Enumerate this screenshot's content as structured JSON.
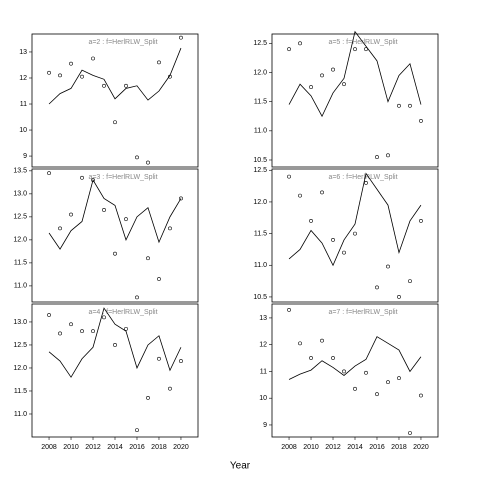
{
  "xlabel": "Year",
  "chart_data": [
    {
      "type": "line",
      "title": "a=2 : f=HerlRLW_Split",
      "x": [
        2008,
        2009,
        2010,
        2011,
        2012,
        2013,
        2014,
        2015,
        2016,
        2017,
        2018,
        2019,
        2020
      ],
      "series": [
        {
          "style": "line",
          "color": "#000000",
          "values": [
            11.0,
            11.4,
            11.6,
            12.3,
            12.1,
            11.95,
            11.2,
            11.6,
            11.7,
            11.15,
            11.5,
            12.1,
            13.15
          ]
        },
        {
          "style": "points",
          "color": "#000000",
          "values": [
            12.2,
            12.1,
            12.55,
            12.05,
            12.75,
            11.7,
            10.3,
            11.7,
            8.95,
            8.75,
            12.6,
            12.05,
            13.55
          ]
        }
      ],
      "xlim": [
        2006.45,
        2021.55
      ],
      "ylim": [
        8.58,
        13.69
      ],
      "yticks": [
        9,
        10,
        11,
        12,
        13
      ]
    },
    {
      "type": "line",
      "title": "a=3 : f=HerlRLW_Split",
      "x": [
        2008,
        2009,
        2010,
        2011,
        2012,
        2013,
        2014,
        2015,
        2016,
        2017,
        2018,
        2019,
        2020
      ],
      "series": [
        {
          "style": "line",
          "color": "#000000",
          "values": [
            12.15,
            11.8,
            12.2,
            12.4,
            13.3,
            12.9,
            12.75,
            12.0,
            12.5,
            12.7,
            11.95,
            12.5,
            12.9
          ]
        },
        {
          "style": "points",
          "color": "#000000",
          "values": [
            13.45,
            12.25,
            12.55,
            13.35,
            13.3,
            12.65,
            11.7,
            12.45,
            10.75,
            11.6,
            11.15,
            12.25,
            12.9
          ]
        }
      ],
      "xlim": [
        2006.45,
        2021.55
      ],
      "ylim": [
        10.65,
        13.54
      ],
      "yticks": [
        {
          "value": 11,
          "label": "11.0"
        },
        11.5,
        {
          "value": 12,
          "label": "12.0"
        },
        12.5,
        {
          "value": 13,
          "label": "13.0"
        },
        13.5
      ]
    },
    {
      "type": "line",
      "title": "a=4 : f=HerlRLW_Split",
      "x": [
        2008,
        2009,
        2010,
        2011,
        2012,
        2013,
        2014,
        2015,
        2016,
        2017,
        2018,
        2019,
        2020
      ],
      "series": [
        {
          "style": "line",
          "color": "#000000",
          "values": [
            12.35,
            12.15,
            11.8,
            12.2,
            12.45,
            13.3,
            12.95,
            12.8,
            12.0,
            12.5,
            12.7,
            11.95,
            12.45
          ]
        },
        {
          "style": "points",
          "color": "#000000",
          "values": [
            13.15,
            12.75,
            12.95,
            12.8,
            12.8,
            13.1,
            12.5,
            12.85,
            10.65,
            11.35,
            12.2,
            11.55,
            12.15
          ]
        }
      ],
      "xlim": [
        2006.45,
        2021.55
      ],
      "ylim": [
        10.5,
        13.39
      ],
      "xticks": [
        2008,
        2010,
        2012,
        2014,
        2016,
        2018,
        2020
      ],
      "yticks": [
        {
          "value": 11,
          "label": "11.0"
        },
        11.5,
        {
          "value": 12,
          "label": "12.0"
        },
        12.5,
        {
          "value": 13,
          "label": "13.0"
        }
      ]
    },
    {
      "type": "line",
      "title": "a=5 : f=HerlRLW_Split",
      "x": [
        2008,
        2009,
        2010,
        2011,
        2012,
        2013,
        2014,
        2015,
        2016,
        2017,
        2018,
        2019,
        2020
      ],
      "series": [
        {
          "style": "line",
          "color": "#000000",
          "values": [
            11.45,
            11.8,
            11.6,
            11.25,
            11.65,
            11.9,
            12.7,
            12.45,
            12.2,
            11.5,
            11.95,
            12.15,
            11.45
          ]
        },
        {
          "style": "points",
          "color": "#000000",
          "values": [
            12.4,
            12.5,
            11.75,
            11.95,
            12.05,
            11.8,
            12.4,
            12.4,
            10.55,
            10.58,
            11.43,
            11.43,
            11.17
          ]
        }
      ],
      "xlim": [
        2006.45,
        2021.55
      ],
      "ylim": [
        10.38,
        12.66
      ],
      "yticks": [
        10.5,
        {
          "value": 11,
          "label": "11.0"
        },
        11.5,
        {
          "value": 12,
          "label": "12.0"
        },
        12.5
      ]
    },
    {
      "type": "line",
      "title": "a=6 : f=HerlRLW_Split",
      "x": [
        2008,
        2009,
        2010,
        2011,
        2012,
        2013,
        2014,
        2015,
        2016,
        2017,
        2018,
        2019,
        2020
      ],
      "series": [
        {
          "style": "line",
          "color": "#000000",
          "values": [
            11.1,
            11.25,
            11.55,
            11.35,
            11.0,
            11.4,
            11.65,
            12.45,
            12.2,
            11.95,
            11.2,
            11.7,
            11.95
          ]
        },
        {
          "style": "points",
          "color": "#000000",
          "values": [
            12.4,
            12.1,
            11.7,
            12.15,
            11.4,
            11.2,
            11.5,
            12.3,
            10.65,
            10.98,
            10.5,
            10.75,
            11.7
          ]
        }
      ],
      "xlim": [
        2006.45,
        2021.55
      ],
      "ylim": [
        10.42,
        12.52
      ],
      "yticks": [
        10.5,
        {
          "value": 11,
          "label": "11.0"
        },
        11.5,
        {
          "value": 12,
          "label": "12.0"
        },
        12.5
      ]
    },
    {
      "type": "line",
      "title": "a=7 : f=HerlRLW_Split",
      "x": [
        2008,
        2009,
        2010,
        2011,
        2012,
        2013,
        2014,
        2015,
        2016,
        2017,
        2018,
        2019,
        2020
      ],
      "series": [
        {
          "style": "line",
          "color": "#000000",
          "values": [
            10.7,
            10.9,
            11.05,
            11.4,
            11.15,
            10.85,
            11.2,
            11.45,
            12.3,
            12.05,
            11.8,
            11.0,
            11.55
          ]
        },
        {
          "style": "points",
          "color": "#000000",
          "values": [
            13.3,
            12.05,
            11.5,
            12.15,
            11.5,
            11.0,
            10.35,
            10.95,
            10.15,
            10.6,
            10.75,
            8.7,
            10.1
          ]
        }
      ],
      "xlim": [
        2006.45,
        2021.55
      ],
      "ylim": [
        8.55,
        13.52
      ],
      "xticks": [
        2008,
        2010,
        2012,
        2014,
        2016,
        2018,
        2020
      ],
      "yticks": [
        9,
        10,
        11,
        12,
        13
      ]
    }
  ]
}
